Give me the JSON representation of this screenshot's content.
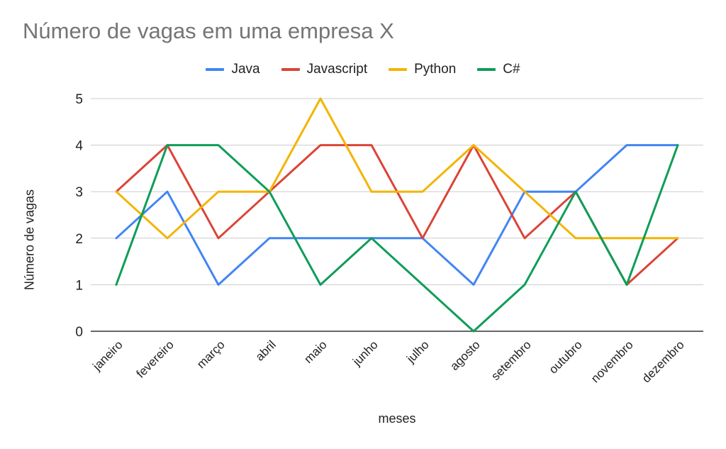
{
  "chart_data": {
    "type": "line",
    "title": "Número de vagas em uma empresa X",
    "xlabel": "meses",
    "ylabel": "Número de vagas",
    "ylim": [
      0,
      5
    ],
    "yticks": [
      0,
      1,
      2,
      3,
      4,
      5
    ],
    "grid": true,
    "legend_position": "top",
    "categories": [
      "janeiro",
      "fevereiro",
      "março",
      "abril",
      "maio",
      "junho",
      "julho",
      "agosto",
      "setembro",
      "outubro",
      "novembro",
      "dezembro"
    ],
    "series": [
      {
        "name": "Java",
        "color": "#4285F4",
        "values": [
          2,
          3,
          1,
          2,
          2,
          2,
          2,
          1,
          3,
          3,
          4,
          4
        ]
      },
      {
        "name": "Javascript",
        "color": "#DB4437",
        "values": [
          3,
          4,
          2,
          3,
          4,
          4,
          2,
          4,
          2,
          3,
          1,
          2
        ]
      },
      {
        "name": "Python",
        "color": "#F4B400",
        "values": [
          3,
          2,
          3,
          3,
          5,
          3,
          3,
          4,
          3,
          2,
          2,
          2
        ]
      },
      {
        "name": "C#",
        "color": "#0F9D58",
        "values": [
          1,
          4,
          4,
          3,
          1,
          2,
          1,
          0,
          1,
          3,
          1,
          4
        ]
      }
    ]
  }
}
